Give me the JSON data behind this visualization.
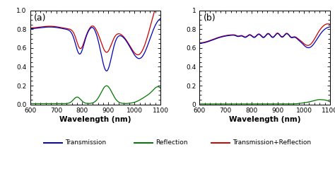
{
  "title_a": "(a)",
  "title_b": "(b)",
  "xlabel": "Wavelength (nm)",
  "xlim": [
    600,
    1100
  ],
  "ylim": [
    0,
    1
  ],
  "yticks": [
    0,
    0.2,
    0.4,
    0.6,
    0.8,
    1
  ],
  "xticks": [
    600,
    700,
    800,
    900,
    1000,
    1100
  ],
  "colors": {
    "transmission": "#0000bb",
    "reflection": "#007700",
    "sum": "#cc0000"
  },
  "legend": {
    "transmission": "Transmission",
    "reflection": "Reflection",
    "sum": "Transmission+Reflection"
  },
  "background": "#ffffff"
}
